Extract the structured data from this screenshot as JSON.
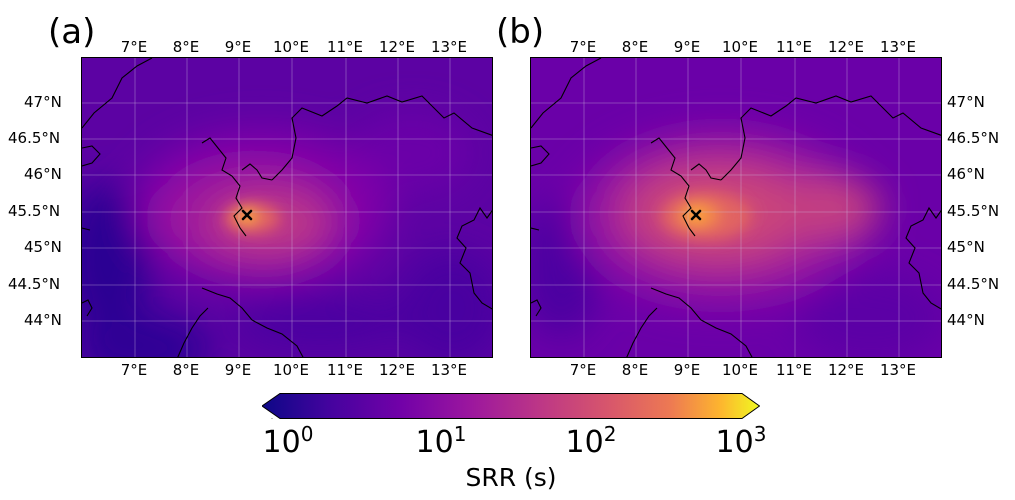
{
  "panels": [
    {
      "label": "(a)",
      "lon_ticks": [
        "7°E",
        "8°E",
        "9°E",
        "10°E",
        "11°E",
        "12°E",
        "13°E"
      ],
      "lat_ticks": [
        "47°N",
        "46.5°N",
        "46°N",
        "45.5°N",
        "45°N",
        "44.5°N",
        "44°N"
      ],
      "lat_label_side": "left",
      "marker": {
        "symbol": "×",
        "lon": 9.2,
        "lat": 45.45
      },
      "hotspot_srr_s": 300
    },
    {
      "label": "(b)",
      "lon_ticks": [
        "7°E",
        "8°E",
        "9°E",
        "10°E",
        "11°E",
        "12°E",
        "13°E"
      ],
      "lat_ticks": [
        "47°N",
        "46.5°N",
        "46°N",
        "45.5°N",
        "45°N",
        "44.5°N",
        "44°N"
      ],
      "lat_label_side": "right",
      "marker": {
        "symbol": "×",
        "lon": 9.2,
        "lat": 45.45
      },
      "hotspot_srr_s": 400
    }
  ],
  "map_extent": {
    "lon": [
      6.0,
      14.0
    ],
    "lat": [
      43.5,
      47.6
    ]
  },
  "colorbar": {
    "title": "SRR (s)",
    "scale": "log",
    "range_s": [
      1,
      1000
    ],
    "colormap": "plasma",
    "extend": "both",
    "ticks": [
      {
        "base": "10",
        "exp": "0"
      },
      {
        "base": "10",
        "exp": "1"
      },
      {
        "base": "10",
        "exp": "2"
      },
      {
        "base": "10",
        "exp": "3"
      }
    ]
  },
  "colors": {
    "low": "#0d0887",
    "mid_low": "#6a00a8",
    "mid": "#b12a90",
    "mid_high": "#e16462",
    "high": "#fca636",
    "max": "#f0f921"
  }
}
